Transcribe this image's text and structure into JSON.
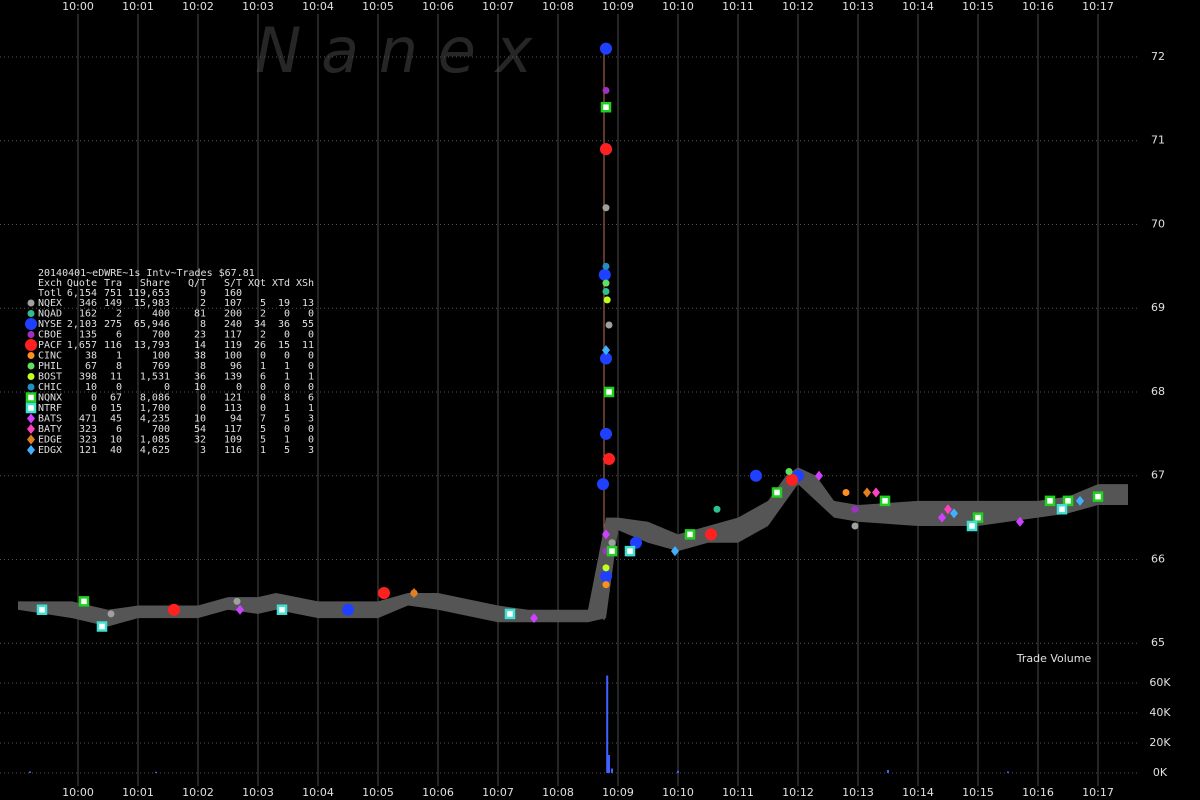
{
  "chart_data": [
    {
      "type": "scatter",
      "watermark": "N  a  n  e  x",
      "title": "20140401~eDWRE~1s Intv~Trades $67.81",
      "columns": [
        "Exch",
        "Quote",
        "Tra",
        "Share",
        "Q/T",
        "S/T",
        "XQt",
        "XTd",
        "XSh"
      ],
      "total": {
        "name": "Totl",
        "stats": [
          "6,154",
          "751",
          "119,653",
          "9",
          "160"
        ]
      },
      "xlim": [
        -1.3,
        18.7
      ],
      "xticks": [
        {
          "value": 0,
          "label": "10:00"
        },
        {
          "value": 1,
          "label": "10:01"
        },
        {
          "value": 2,
          "label": "10:02"
        },
        {
          "value": 3,
          "label": "10:03"
        },
        {
          "value": 4,
          "label": "10:04"
        },
        {
          "value": 5,
          "label": "10:05"
        },
        {
          "value": 6,
          "label": "10:06"
        },
        {
          "value": 7,
          "label": "10:07"
        },
        {
          "value": 8,
          "label": "10:08"
        },
        {
          "value": 9,
          "label": "10:09"
        },
        {
          "value": 10,
          "label": "10:10"
        },
        {
          "value": 11,
          "label": "10:11"
        },
        {
          "value": 12,
          "label": "10:12"
        },
        {
          "value": 13,
          "label": "10:13"
        },
        {
          "value": 14,
          "label": "10:14"
        },
        {
          "value": 15,
          "label": "10:15"
        },
        {
          "value": 16,
          "label": "10:16"
        },
        {
          "value": 17,
          "label": "10:17"
        }
      ],
      "ylim": [
        64.8,
        72.68
      ],
      "yticks": [
        65,
        66,
        67,
        68,
        69,
        70,
        71,
        72
      ],
      "band": {
        "color": "#555555",
        "x": [
          -1,
          -0.1,
          0.5,
          1,
          2,
          2.5,
          3,
          3.3,
          4,
          5,
          5.5,
          6,
          7,
          7.5,
          8.5,
          8.8,
          9,
          9.5,
          10,
          10.5,
          11,
          11.5,
          11.8,
          12,
          12.3,
          12.6,
          13,
          14,
          15,
          16,
          16.5,
          17,
          17.5
        ],
        "low": [
          65.4,
          65.3,
          65.2,
          65.3,
          65.3,
          65.4,
          65.35,
          65.4,
          65.3,
          65.3,
          65.45,
          65.4,
          65.25,
          65.25,
          65.25,
          65.3,
          66.35,
          66.2,
          66.1,
          66.2,
          66.2,
          66.4,
          66.7,
          66.9,
          66.7,
          66.5,
          66.45,
          66.4,
          66.4,
          66.5,
          66.55,
          66.65,
          66.65
        ],
        "high": [
          65.5,
          65.5,
          65.4,
          65.45,
          65.45,
          65.55,
          65.55,
          65.6,
          65.5,
          65.5,
          65.6,
          65.6,
          65.45,
          65.4,
          65.4,
          66.5,
          66.5,
          66.45,
          66.3,
          66.4,
          66.5,
          66.7,
          67.0,
          67.1,
          67.0,
          66.7,
          66.65,
          66.7,
          66.7,
          66.7,
          66.75,
          66.9,
          66.9
        ]
      },
      "series": [
        {
          "name": "NQEX",
          "color": "#a0a0a0",
          "marker": "circle",
          "stats": [
            "346",
            "149",
            "15,983",
            "2",
            "107",
            "5",
            "19",
            "13"
          ],
          "x": [
            0.55,
            8.8,
            8.85,
            8.9,
            12.95,
            2.65
          ],
          "values": [
            65.35,
            70.2,
            68.8,
            66.2,
            66.4,
            65.5
          ]
        },
        {
          "name": "NQAD",
          "color": "#30c090",
          "marker": "circle",
          "stats": [
            "162",
            "2",
            "400",
            "81",
            "200",
            "2",
            "0",
            "0"
          ],
          "x": [
            8.8,
            10.65
          ],
          "values": [
            69.2,
            66.6
          ]
        },
        {
          "name": "NYSE",
          "color": "#2040ff",
          "marker": "bigcircle",
          "stats": [
            "2,103",
            "275",
            "65,946",
            "8",
            "240",
            "34",
            "36",
            "55"
          ],
          "x": [
            8.8,
            8.8,
            8.78,
            8.8,
            8.8,
            8.75,
            8.8,
            12.0,
            11.3,
            4.5,
            9.3
          ],
          "values": [
            72.1,
            70.9,
            69.4,
            68.4,
            67.5,
            66.9,
            65.8,
            67.0,
            67.0,
            65.4,
            66.2
          ]
        },
        {
          "name": "CBOE",
          "color": "#a030c0",
          "marker": "circle",
          "stats": [
            "135",
            "6",
            "700",
            "23",
            "117",
            "2",
            "0",
            "0"
          ],
          "x": [
            8.8,
            8.8,
            12.95
          ],
          "values": [
            71.6,
            66.1,
            66.6
          ]
        },
        {
          "name": "PACF",
          "color": "#ff2020",
          "marker": "bigcircle",
          "stats": [
            "1,657",
            "116",
            "13,793",
            "14",
            "119",
            "26",
            "15",
            "11"
          ],
          "x": [
            8.8,
            8.85,
            10.55,
            1.6,
            5.1,
            11.9
          ],
          "values": [
            70.9,
            67.2,
            66.3,
            65.4,
            65.6,
            66.95
          ]
        },
        {
          "name": "CINC",
          "color": "#ff9020",
          "marker": "circle",
          "stats": [
            "38",
            "1",
            "100",
            "38",
            "100",
            "0",
            "0",
            "0"
          ],
          "x": [
            8.8,
            5.6,
            12.8
          ],
          "values": [
            65.7,
            65.6,
            66.8
          ]
        },
        {
          "name": "PHIL",
          "color": "#60e060",
          "marker": "circle",
          "stats": [
            "67",
            "8",
            "769",
            "8",
            "96",
            "1",
            "1",
            "0"
          ],
          "x": [
            8.8,
            11.85
          ],
          "values": [
            69.3,
            67.05
          ]
        },
        {
          "name": "BOST",
          "color": "#c0ff20",
          "marker": "circle",
          "stats": [
            "398",
            "11",
            "1,531",
            "36",
            "139",
            "6",
            "1",
            "1"
          ],
          "x": [
            8.82,
            8.8
          ],
          "values": [
            69.1,
            65.9
          ]
        },
        {
          "name": "CHIC",
          "color": "#2090c0",
          "marker": "circle",
          "stats": [
            "10",
            "0",
            "0",
            "10",
            "0",
            "0",
            "0",
            "0"
          ],
          "x": [
            8.8
          ],
          "values": [
            69.5
          ]
        },
        {
          "name": "NQNX",
          "color": "#20d020",
          "marker": "square",
          "stats": [
            "0",
            "67",
            "8,086",
            "0",
            "121",
            "0",
            "8",
            "6"
          ],
          "x": [
            8.8,
            8.85,
            8.9,
            0.1,
            10.2,
            13.45,
            15.0,
            16.2,
            16.5,
            17.0,
            11.65
          ],
          "values": [
            71.4,
            68.0,
            66.1,
            65.5,
            66.3,
            66.7,
            66.5,
            66.7,
            66.7,
            66.75,
            66.8
          ]
        },
        {
          "name": "NTRF",
          "color": "#40e0d0",
          "marker": "square",
          "stats": [
            "0",
            "15",
            "1,700",
            "0",
            "113",
            "0",
            "1",
            "1"
          ],
          "x": [
            0.4,
            -0.6,
            3.4,
            7.2,
            9.2,
            14.9,
            16.4
          ],
          "values": [
            65.2,
            65.4,
            65.4,
            65.35,
            66.1,
            66.4,
            66.6
          ]
        },
        {
          "name": "BATS",
          "color": "#d040ff",
          "marker": "diamond",
          "stats": [
            "471",
            "45",
            "4,235",
            "10",
            "94",
            "7",
            "5",
            "3"
          ],
          "x": [
            8.8,
            2.7,
            7.6,
            14.4,
            15.7,
            12.35
          ],
          "values": [
            66.3,
            65.4,
            65.3,
            66.5,
            66.45,
            67.0
          ]
        },
        {
          "name": "BATY",
          "color": "#ff40c0",
          "marker": "diamond",
          "stats": [
            "323",
            "6",
            "700",
            "54",
            "117",
            "5",
            "0",
            "0"
          ],
          "x": [
            13.3,
            14.5
          ],
          "values": [
            66.8,
            66.6
          ]
        },
        {
          "name": "EDGE",
          "color": "#e08020",
          "marker": "diamond",
          "stats": [
            "323",
            "10",
            "1,085",
            "32",
            "109",
            "5",
            "1",
            "0"
          ],
          "x": [
            5.6,
            13.15
          ],
          "values": [
            65.6,
            66.8
          ]
        },
        {
          "name": "EDGX",
          "color": "#40b0ff",
          "marker": "diamond",
          "stats": [
            "121",
            "40",
            "4,625",
            "3",
            "116",
            "1",
            "5",
            "3"
          ],
          "x": [
            8.8,
            9.95,
            14.6,
            16.7
          ],
          "values": [
            68.5,
            66.1,
            66.55,
            66.7
          ]
        }
      ]
    },
    {
      "type": "bar",
      "title": "Trade Volume",
      "color": "#4060ff",
      "xlim": [
        -1.3,
        18.7
      ],
      "xticks": [
        {
          "value": 0,
          "label": "10:00"
        },
        {
          "value": 1,
          "label": "10:01"
        },
        {
          "value": 2,
          "label": "10:02"
        },
        {
          "value": 3,
          "label": "10:03"
        },
        {
          "value": 4,
          "label": "10:04"
        },
        {
          "value": 5,
          "label": "10:05"
        },
        {
          "value": 6,
          "label": "10:06"
        },
        {
          "value": 7,
          "label": "10:07"
        },
        {
          "value": 8,
          "label": "10:08"
        },
        {
          "value": 9,
          "label": "10:09"
        },
        {
          "value": 10,
          "label": "10:10"
        },
        {
          "value": 11,
          "label": "10:11"
        },
        {
          "value": 12,
          "label": "10:12"
        },
        {
          "value": 13,
          "label": "10:13"
        },
        {
          "value": 14,
          "label": "10:14"
        },
        {
          "value": 15,
          "label": "10:15"
        },
        {
          "value": 16,
          "label": "10:16"
        },
        {
          "value": 17,
          "label": "10:17"
        }
      ],
      "x": [
        -0.8,
        1.3,
        8.82,
        8.85,
        8.9,
        10,
        13.5,
        15.5
      ],
      "values": [
        1000,
        800,
        65000,
        12000,
        3000,
        1500,
        2000,
        1000
      ],
      "ylim": [
        -4667,
        72000
      ],
      "yticks": [
        {
          "value": 0,
          "label": "0K"
        },
        {
          "value": 20000,
          "label": "20K"
        },
        {
          "value": 40000,
          "label": "40K"
        },
        {
          "value": 60000,
          "label": "60K"
        }
      ]
    }
  ]
}
